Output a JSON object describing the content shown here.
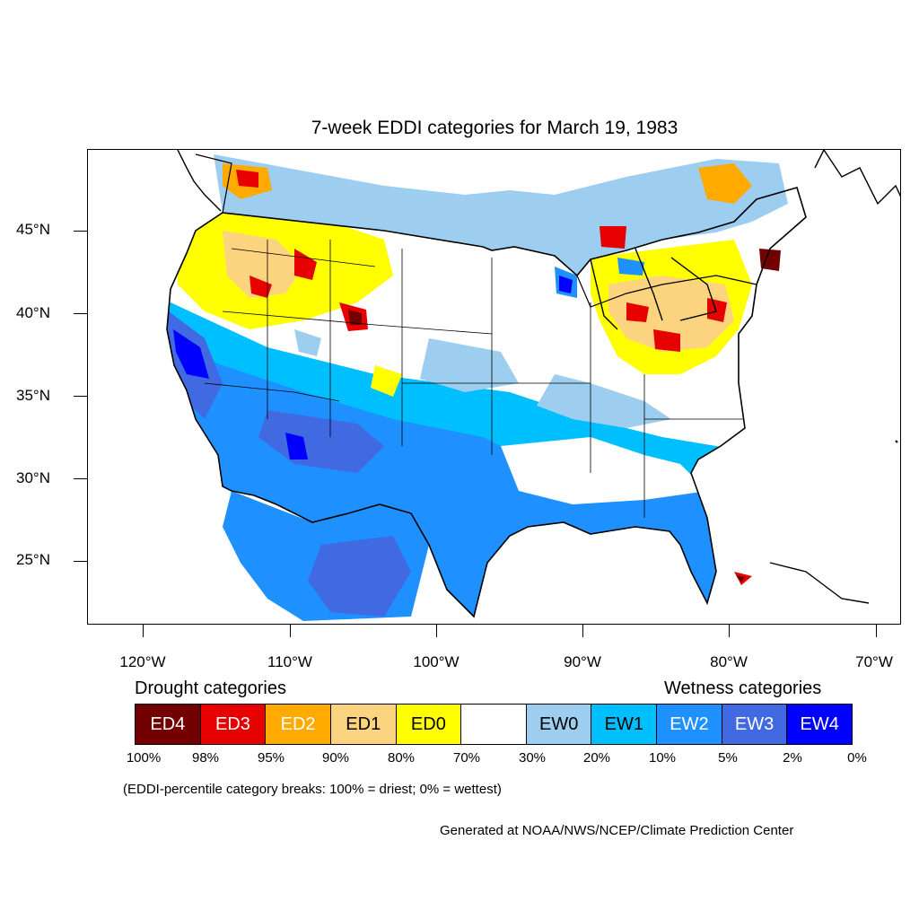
{
  "title": "7-week EDDI categories for March 19, 1983",
  "lat_labels": [
    "45°N",
    "40°N",
    "35°N",
    "30°N",
    "25°N"
  ],
  "lon_labels": [
    "120°W",
    "110°W",
    "100°W",
    "90°W",
    "80°W",
    "70°W"
  ],
  "legend": {
    "drought_heading": "Drought categories",
    "wetness_heading": "Wetness categories",
    "categories": [
      {
        "label": "ED4",
        "color": "#730000",
        "text_color": "#ffffff"
      },
      {
        "label": "ED3",
        "color": "#e60000",
        "text_color": "#ffffff"
      },
      {
        "label": "ED2",
        "color": "#ffaa00",
        "text_color": "#ffffff"
      },
      {
        "label": "ED1",
        "color": "#fcd37f",
        "text_color": "#000000"
      },
      {
        "label": "ED0",
        "color": "#ffff00",
        "text_color": "#000000"
      },
      {
        "label": "",
        "color": "#ffffff",
        "text_color": "#000000"
      },
      {
        "label": "EW0",
        "color": "#9dcef0",
        "text_color": "#000000"
      },
      {
        "label": "EW1",
        "color": "#00bfff",
        "text_color": "#000000"
      },
      {
        "label": "EW2",
        "color": "#1e90ff",
        "text_color": "#ffffff"
      },
      {
        "label": "EW3",
        "color": "#4169e1",
        "text_color": "#ffffff"
      },
      {
        "label": "EW4",
        "color": "#0000ff",
        "text_color": "#ffffff"
      }
    ],
    "breaks": [
      "100%",
      "98%",
      "95%",
      "90%",
      "80%",
      "70%",
      "30%",
      "20%",
      "10%",
      "5%",
      "2%",
      "0%"
    ]
  },
  "note": "(EDDI-percentile category breaks: 100% = driest; 0% = wettest)",
  "credit": "Generated at NOAA/NWS/NCEP/Climate Prediction Center"
}
